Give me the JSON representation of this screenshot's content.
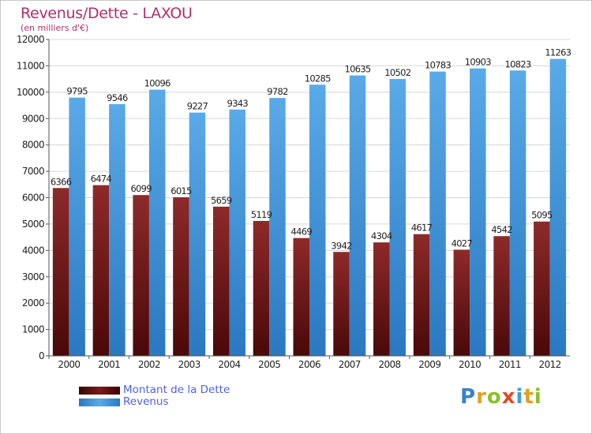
{
  "title": "Revenus/Dette - LAXOU",
  "subtitle": "(en milliers d'€)",
  "brand": {
    "p": "P",
    "r": "r",
    "o": "o",
    "x": "x",
    "i1": "i",
    "t": "t",
    "i2": "i"
  },
  "colors": {
    "dette": "#7a1a1a",
    "revenus": "#3f96dc",
    "title": "#b0306a",
    "legend_text": "#4f62e0"
  },
  "chart_data": {
    "type": "bar",
    "title": "Revenus/Dette - LAXOU",
    "xlabel": "",
    "ylabel": "",
    "ylim": [
      0,
      12000
    ],
    "yticks": [
      0,
      1000,
      2000,
      3000,
      4000,
      5000,
      6000,
      7000,
      8000,
      9000,
      10000,
      11000,
      12000
    ],
    "grid": true,
    "legend_position": "bottom-left",
    "categories": [
      "2000",
      "2001",
      "2002",
      "2003",
      "2004",
      "2005",
      "2006",
      "2007",
      "2008",
      "2009",
      "2010",
      "2011",
      "2012"
    ],
    "series": [
      {
        "name": "Montant de la Dette",
        "values": [
          6366,
          6474,
          6099,
          6015,
          5659,
          5119,
          4469,
          3942,
          4304,
          4617,
          4027,
          4542,
          5095
        ]
      },
      {
        "name": "Revenus",
        "values": [
          9795,
          9546,
          10096,
          9227,
          9343,
          9782,
          10285,
          10635,
          10502,
          10783,
          10903,
          10823,
          11263
        ]
      }
    ]
  }
}
